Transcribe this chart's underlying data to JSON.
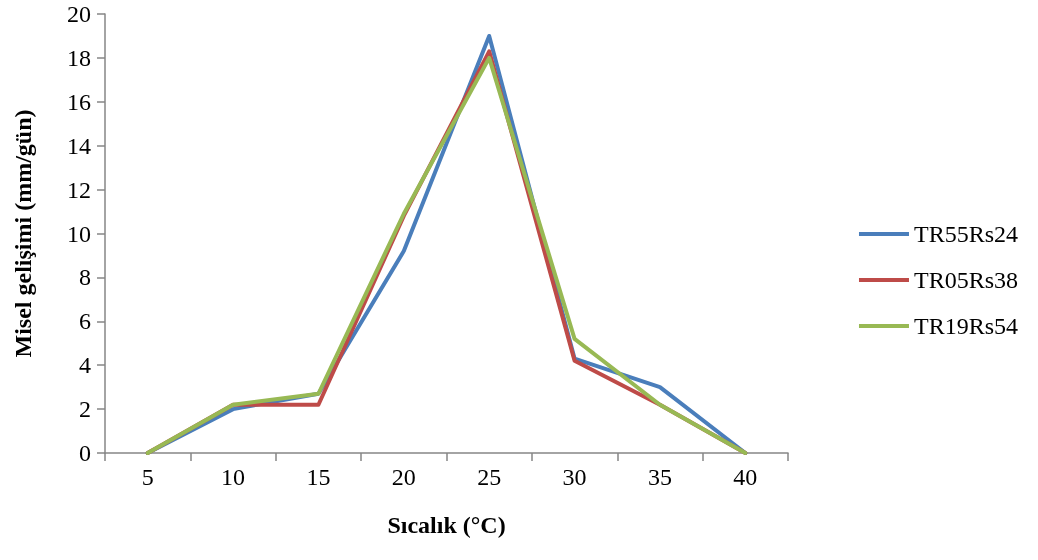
{
  "chart_data": {
    "type": "line",
    "xlabel": "Sıcalık (°C)",
    "ylabel": "Misel gelişimi (mm/gün)",
    "categories": [
      "5",
      "10",
      "15",
      "20",
      "25",
      "30",
      "35",
      "40"
    ],
    "series": [
      {
        "name": "TR55Rs24",
        "color": "#4a7ebb",
        "values": [
          0,
          2.0,
          2.7,
          9.2,
          19.0,
          4.3,
          3.0,
          0
        ]
      },
      {
        "name": "TR05Rs38",
        "color": "#be4b48",
        "values": [
          0,
          2.2,
          2.2,
          10.8,
          18.3,
          4.2,
          2.2,
          0
        ]
      },
      {
        "name": "TR19Rs54",
        "color": "#98b954",
        "values": [
          0,
          2.2,
          2.7,
          10.9,
          18.0,
          5.2,
          2.2,
          0
        ]
      }
    ],
    "ylim": [
      0,
      20
    ],
    "yticks": [
      0,
      2,
      4,
      6,
      8,
      10,
      12,
      14,
      16,
      18,
      20
    ],
    "grid": false,
    "legend": "right",
    "marker": "none",
    "line_style": "solid"
  }
}
